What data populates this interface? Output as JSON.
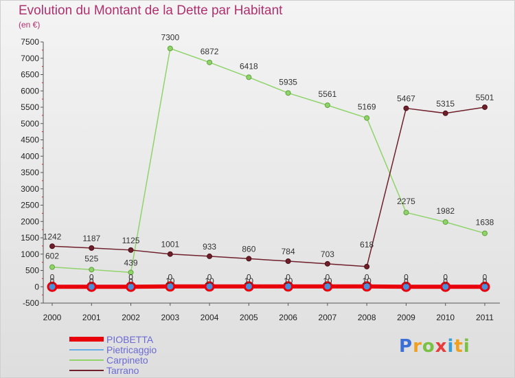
{
  "title": "Evolution du Montant de la Dette par Habitant",
  "subtitle": "(en €)",
  "brand": {
    "text": "Proxiti",
    "letter_colors": [
      "#3a6fd6",
      "#f0a020",
      "#7ac142",
      "#e83c3c",
      "#3a9fd6",
      "#f0a020",
      "#7ac142"
    ]
  },
  "chart_data": {
    "type": "line",
    "x": [
      "2000",
      "2001",
      "2002",
      "2003",
      "2004",
      "2005",
      "2006",
      "2007",
      "2008",
      "2009",
      "2010",
      "2011"
    ],
    "ylim": [
      -500,
      7500
    ],
    "yticks": [
      -500,
      0,
      500,
      1000,
      1500,
      2000,
      2500,
      3000,
      3500,
      4000,
      4500,
      5000,
      5500,
      6000,
      6500,
      7000,
      7500
    ],
    "legend_position": "bottom-left",
    "grid": false,
    "series": [
      {
        "name": "PIOBETTA",
        "color": "#e8000b",
        "values": [
          0,
          0,
          0,
          10,
          10,
          10,
          10,
          10,
          10,
          0,
          0,
          0
        ],
        "labels": [
          "0",
          "0",
          "0",
          "10",
          "10",
          "10",
          "10",
          "10",
          "10",
          "0",
          "0",
          "0"
        ]
      },
      {
        "name": "Pietricaggio",
        "color": "#6aaee6",
        "values": [
          0,
          0,
          0,
          0,
          0,
          0,
          0,
          0,
          0,
          0,
          0,
          0
        ],
        "labels": [
          "0",
          "0",
          "0",
          "0",
          "0",
          "0",
          "0",
          "0",
          "0",
          "0",
          "0",
          "0"
        ]
      },
      {
        "name": "Carpineto",
        "color": "#8fd36a",
        "values": [
          602,
          525,
          439,
          7300,
          6872,
          6418,
          5935,
          5561,
          5169,
          2275,
          1982,
          1638
        ],
        "labels": [
          "602",
          "525",
          "439",
          "7300",
          "6872",
          "6418",
          "5935",
          "5561",
          "5169",
          "2275",
          "1982",
          "1638"
        ]
      },
      {
        "name": "Tarrano",
        "color": "#6e1f2a",
        "values": [
          1242,
          1187,
          1125,
          1001,
          933,
          860,
          784,
          703,
          618,
          5467,
          5315,
          5501
        ],
        "labels": [
          "1242",
          "1187",
          "1125",
          "1001",
          "933",
          "860",
          "784",
          "703",
          "618",
          "5467",
          "5315",
          "5501"
        ]
      }
    ]
  }
}
